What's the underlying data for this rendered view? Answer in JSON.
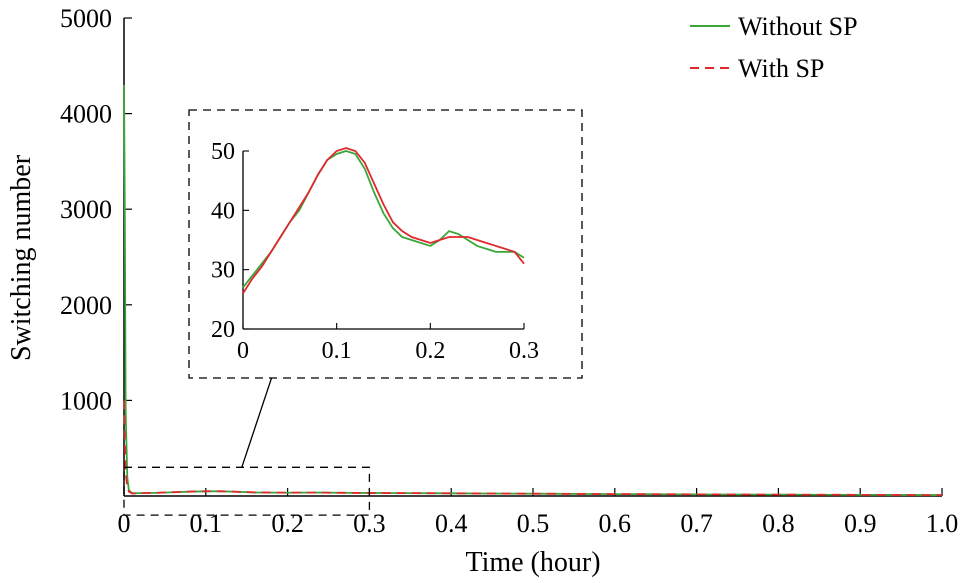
{
  "chart_data": {
    "type": "line",
    "title": "",
    "xlabel": "Time (hour)",
    "ylabel": "Switching number",
    "xlim": [
      0,
      1.0
    ],
    "ylim": [
      0,
      5000
    ],
    "x_ticks": [
      "0",
      "0.1",
      "0.2",
      "0.3",
      "0.4",
      "0.5",
      "0.6",
      "0.7",
      "0.8",
      "0.9",
      "1.0"
    ],
    "y_ticks": [
      "1000",
      "2000",
      "3000",
      "4000",
      "5000"
    ],
    "y_tick_values": [
      1000,
      2000,
      3000,
      4000,
      5000
    ],
    "grid": false,
    "legend_position": "top-right",
    "series": [
      {
        "name": "Without SP",
        "color": "#3aa63a",
        "style": "solid",
        "x": [
          0,
          0.001,
          0.002,
          0.004,
          0.006,
          0.01,
          0.02,
          0.04,
          0.06,
          0.08,
          0.1,
          0.11,
          0.12,
          0.14,
          0.16,
          0.18,
          0.2,
          0.22,
          0.24,
          0.26,
          0.28,
          0.3,
          0.35,
          0.4,
          0.5,
          0.6,
          0.7,
          0.8,
          0.9,
          1.0
        ],
        "y": [
          4300,
          3000,
          900,
          200,
          60,
          28,
          30,
          33,
          39,
          45,
          49,
          50,
          49,
          43,
          37,
          35,
          34,
          35,
          36,
          34,
          33,
          32,
          30,
          28,
          24,
          20,
          17,
          14,
          12,
          10
        ]
      },
      {
        "name": "With SP",
        "color": "#e0282e",
        "style": "dashed",
        "x": [
          0,
          0.001,
          0.002,
          0.004,
          0.006,
          0.01,
          0.02,
          0.04,
          0.06,
          0.08,
          0.1,
          0.11,
          0.12,
          0.14,
          0.16,
          0.18,
          0.2,
          0.22,
          0.24,
          0.26,
          0.28,
          0.3,
          0.35,
          0.4,
          0.5,
          0.6,
          0.7,
          0.8,
          0.9,
          1.0
        ],
        "y": [
          1000,
          600,
          250,
          90,
          45,
          27,
          30,
          34,
          40,
          46,
          50,
          50,
          49,
          44,
          38,
          36,
          35,
          35,
          35,
          34,
          33,
          31,
          30,
          28,
          24,
          20,
          17,
          14,
          12,
          10
        ]
      }
    ],
    "zoom_box": {
      "xlim": [
        0,
        0.3
      ],
      "ylim": [
        -200,
        300
      ]
    },
    "inset": {
      "xlim": [
        0,
        0.3
      ],
      "ylim": [
        20,
        50
      ],
      "x_ticks": [
        "0",
        "0.1",
        "0.2",
        "0.3"
      ],
      "x_tick_values": [
        0,
        0.1,
        0.2,
        0.3
      ],
      "y_ticks": [
        "20",
        "30",
        "40",
        "50"
      ],
      "y_tick_values": [
        20,
        30,
        40,
        50
      ],
      "series": [
        {
          "name": "Without SP",
          "color": "#3aa63a",
          "x": [
            0,
            0.01,
            0.02,
            0.03,
            0.04,
            0.05,
            0.06,
            0.07,
            0.08,
            0.09,
            0.1,
            0.11,
            0.12,
            0.13,
            0.14,
            0.15,
            0.16,
            0.17,
            0.18,
            0.19,
            0.2,
            0.21,
            0.22,
            0.23,
            0.24,
            0.25,
            0.26,
            0.27,
            0.28,
            0.29,
            0.3
          ],
          "y": [
            27,
            29,
            31,
            33,
            35.5,
            38,
            40,
            43,
            46,
            48.5,
            49.5,
            50,
            49.5,
            47,
            43,
            39.5,
            37,
            35.5,
            35,
            34.5,
            34,
            35,
            36.5,
            36,
            35,
            34,
            33.5,
            33,
            33,
            33,
            32
          ]
        },
        {
          "name": "With SP",
          "color": "#e0282e",
          "x": [
            0,
            0.01,
            0.02,
            0.03,
            0.04,
            0.05,
            0.06,
            0.07,
            0.08,
            0.09,
            0.1,
            0.11,
            0.12,
            0.13,
            0.14,
            0.15,
            0.16,
            0.17,
            0.18,
            0.19,
            0.2,
            0.21,
            0.22,
            0.23,
            0.24,
            0.25,
            0.26,
            0.27,
            0.28,
            0.29,
            0.3
          ],
          "y": [
            26,
            28.5,
            30.5,
            33,
            35.5,
            38,
            40.5,
            43,
            46,
            48.5,
            50,
            50.5,
            50,
            48,
            44.5,
            41,
            38,
            36.5,
            35.5,
            35,
            34.5,
            35,
            35.5,
            35.5,
            35.5,
            35,
            34.5,
            34,
            33.5,
            33,
            31
          ]
        }
      ]
    }
  }
}
